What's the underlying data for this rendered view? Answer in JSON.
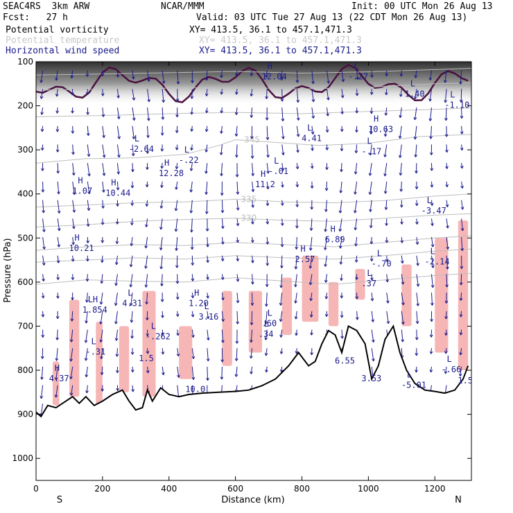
{
  "header": {
    "model": "SEAC4RS  3km ARW",
    "org": "NCAR/MMM",
    "init": "Init: 00 UTC Mon 26 Aug 13",
    "fcst": "Fcst:   27 h",
    "valid": "Valid: 03 UTC Tue 27 Aug 13 (22 CDT Mon 26 Aug 13)",
    "fields": [
      {
        "name": "Potential vorticity",
        "xy": "XY= 413.5, 36.1 to 457.1,471.3"
      },
      {
        "name": "Potential temperature",
        "xy": "XY= 413.5, 36.1 to 457.1,471.3"
      },
      {
        "name": "Horizontal wind speed",
        "xy": "XY= 413.5, 36.1 to 457.1,471.3"
      }
    ]
  },
  "colors": {
    "pv_fill": "#f7b6b6",
    "pv_dark": "#4a1040",
    "theta": "#bdbdbd",
    "wind": "#1a1a8c",
    "terrain": "#000000",
    "text_navy": "#1a1a8c",
    "text_gray": "#c8c8c8"
  },
  "chart_data": {
    "type": "cross-section",
    "xlabel": "Distance (km)",
    "ylabel": "Pressure (hPa)",
    "xlim": [
      0,
      1310
    ],
    "ylim": [
      1050,
      100
    ],
    "x_ticks": [
      0,
      200,
      400,
      600,
      800,
      1000,
      1200
    ],
    "y_ticks": [
      100,
      200,
      300,
      400,
      500,
      600,
      700,
      800,
      900,
      1000
    ],
    "end_labels": {
      "left": "S",
      "right": "N"
    },
    "terrain": [
      [
        0,
        895
      ],
      [
        15,
        905
      ],
      [
        35,
        880
      ],
      [
        60,
        885
      ],
      [
        90,
        870
      ],
      [
        110,
        860
      ],
      [
        130,
        875
      ],
      [
        150,
        860
      ],
      [
        175,
        880
      ],
      [
        200,
        870
      ],
      [
        230,
        855
      ],
      [
        260,
        845
      ],
      [
        280,
        870
      ],
      [
        300,
        890
      ],
      [
        320,
        885
      ],
      [
        335,
        845
      ],
      [
        350,
        870
      ],
      [
        375,
        840
      ],
      [
        400,
        855
      ],
      [
        430,
        860
      ],
      [
        460,
        855
      ],
      [
        500,
        852
      ],
      [
        550,
        850
      ],
      [
        600,
        848
      ],
      [
        640,
        845
      ],
      [
        680,
        835
      ],
      [
        720,
        820
      ],
      [
        760,
        790
      ],
      [
        790,
        760
      ],
      [
        820,
        790
      ],
      [
        840,
        780
      ],
      [
        860,
        740
      ],
      [
        880,
        710
      ],
      [
        900,
        720
      ],
      [
        920,
        760
      ],
      [
        940,
        700
      ],
      [
        965,
        710
      ],
      [
        990,
        740
      ],
      [
        1010,
        820
      ],
      [
        1030,
        790
      ],
      [
        1050,
        730
      ],
      [
        1075,
        700
      ],
      [
        1095,
        760
      ],
      [
        1115,
        800
      ],
      [
        1140,
        830
      ],
      [
        1170,
        845
      ],
      [
        1200,
        848
      ],
      [
        1230,
        852
      ],
      [
        1260,
        845
      ],
      [
        1285,
        820
      ],
      [
        1300,
        790
      ]
    ],
    "theta_contours": [
      {
        "label": "330",
        "label_x": 640,
        "points": [
          [
            0,
            475
          ],
          [
            150,
            470
          ],
          [
            300,
            462
          ],
          [
            450,
            458
          ],
          [
            600,
            455
          ],
          [
            750,
            460
          ],
          [
            900,
            462
          ],
          [
            1050,
            455
          ],
          [
            1200,
            448
          ],
          [
            1310,
            445
          ]
        ]
      },
      {
        "label": "335",
        "label_x": 640,
        "points": [
          [
            0,
            430
          ],
          [
            150,
            425
          ],
          [
            300,
            420
          ],
          [
            450,
            418
          ],
          [
            600,
            412
          ],
          [
            750,
            418
          ],
          [
            900,
            420
          ],
          [
            1050,
            415
          ],
          [
            1200,
            405
          ],
          [
            1310,
            400
          ]
        ]
      },
      {
        "label": "345",
        "label_x": 650,
        "points": [
          [
            0,
            330
          ],
          [
            150,
            320
          ],
          [
            300,
            318
          ],
          [
            450,
            310
          ],
          [
            550,
            290
          ],
          [
            600,
            277
          ],
          [
            700,
            282
          ],
          [
            850,
            290
          ],
          [
            1000,
            285
          ],
          [
            1150,
            270
          ],
          [
            1310,
            265
          ]
        ]
      },
      {
        "label": "",
        "label_x": 0,
        "points": [
          [
            0,
            528
          ],
          [
            150,
            520
          ],
          [
            300,
            515
          ],
          [
            450,
            517
          ],
          [
            600,
            510
          ],
          [
            750,
            515
          ],
          [
            900,
            520
          ],
          [
            1050,
            510
          ],
          [
            1200,
            500
          ],
          [
            1310,
            495
          ]
        ]
      },
      {
        "label": "",
        "label_x": 0,
        "points": [
          [
            0,
            555
          ],
          [
            150,
            550
          ],
          [
            300,
            545
          ],
          [
            450,
            548
          ],
          [
            600,
            540
          ],
          [
            750,
            545
          ],
          [
            900,
            548
          ],
          [
            1050,
            540
          ],
          [
            1200,
            530
          ],
          [
            1310,
            525
          ]
        ]
      },
      {
        "label": "",
        "label_x": 0,
        "points": [
          [
            0,
            605
          ],
          [
            150,
            595
          ],
          [
            300,
            598
          ],
          [
            450,
            600
          ],
          [
            600,
            590
          ],
          [
            750,
            598
          ],
          [
            900,
            605
          ],
          [
            1050,
            595
          ],
          [
            1200,
            585
          ],
          [
            1310,
            580
          ]
        ]
      },
      {
        "label": "",
        "label_x": 0,
        "points": [
          [
            0,
            225
          ],
          [
            200,
            222
          ],
          [
            400,
            218
          ],
          [
            600,
            215
          ],
          [
            800,
            218
          ],
          [
            1000,
            213
          ],
          [
            1200,
            208
          ],
          [
            1310,
            205
          ]
        ]
      },
      {
        "label": "",
        "label_x": 0,
        "points": [
          [
            0,
            165
          ],
          [
            200,
            162
          ],
          [
            400,
            160
          ],
          [
            600,
            158
          ],
          [
            800,
            162
          ],
          [
            1000,
            158
          ],
          [
            1200,
            150
          ],
          [
            1310,
            148
          ]
        ]
      },
      {
        "label": "",
        "label_x": 0,
        "points": [
          [
            0,
            130
          ],
          [
            200,
            128
          ],
          [
            400,
            125
          ],
          [
            600,
            122
          ],
          [
            800,
            126
          ],
          [
            1000,
            123
          ],
          [
            1200,
            118
          ],
          [
            1310,
            115
          ]
        ]
      }
    ],
    "wind_speed_labels": [
      {
        "x": 60,
        "p": 820,
        "hl": "H",
        "v": "4.37"
      },
      {
        "x": 170,
        "p": 760,
        "hl": "L",
        "v": "-.31"
      },
      {
        "x": 130,
        "p": 395,
        "hl": "H",
        "v": "1.07"
      },
      {
        "x": 230,
        "p": 400,
        "hl": "H",
        "v": "10.44"
      },
      {
        "x": 120,
        "p": 525,
        "hl": "H",
        "v": "10.21"
      },
      {
        "x": 160,
        "p": 665,
        "hl": "LH",
        "v": "1.854"
      },
      {
        "x": 280,
        "p": 650,
        "hl": "L",
        "v": "4.31"
      },
      {
        "x": 300,
        "p": 300,
        "hl": "L",
        "v": "-2.64"
      },
      {
        "x": 390,
        "p": 355,
        "hl": "H",
        "v": "12.28"
      },
      {
        "x": 450,
        "p": 325,
        "hl": "L",
        "v": "-.22"
      },
      {
        "x": 480,
        "p": 650,
        "hl": "H",
        "v": "1.20"
      },
      {
        "x": 510,
        "p": 680,
        "hl": "L",
        "v": "3.16"
      },
      {
        "x": 680,
        "p": 380,
        "hl": "H",
        "v": "11.2"
      },
      {
        "x": 720,
        "p": 350,
        "hl": "L",
        "v": "-.01"
      },
      {
        "x": 700,
        "p": 135,
        "hl": "H",
        "v": "12.04"
      },
      {
        "x": 820,
        "p": 275,
        "hl": "L",
        "v": "4.41"
      },
      {
        "x": 1020,
        "p": 255,
        "hl": "H",
        "v": "10.63"
      },
      {
        "x": 1000,
        "p": 305,
        "hl": "L",
        "v": "-.17"
      },
      {
        "x": 960,
        "p": 135,
        "hl": "L",
        "v": "-.27"
      },
      {
        "x": 1130,
        "p": 175,
        "hl": "L",
        "v": "1.40"
      },
      {
        "x": 890,
        "p": 505,
        "hl": "H",
        "v": "6.89"
      },
      {
        "x": 800,
        "p": 550,
        "hl": "H",
        "v": "2.57"
      },
      {
        "x": 1030,
        "p": 560,
        "hl": "L",
        "v": "-.70"
      },
      {
        "x": 1190,
        "p": 555,
        "hl": "L",
        "v": "-2.14"
      },
      {
        "x": 1000,
        "p": 605,
        "hl": "L",
        "v": ".37"
      },
      {
        "x": 700,
        "p": 695,
        "hl": "L",
        "v": ".60"
      },
      {
        "x": 690,
        "p": 720,
        "hl": "L",
        "v": ".34"
      },
      {
        "x": 350,
        "p": 725,
        "hl": "L",
        "v": "-.262"
      },
      {
        "x": 330,
        "p": 775,
        "hl": "",
        "v": "1.5"
      },
      {
        "x": 250,
        "p": 835,
        "hl": "",
        "v": ""
      },
      {
        "x": 470,
        "p": 845,
        "hl": "",
        "v": "10.0"
      },
      {
        "x": 920,
        "p": 780,
        "hl": "",
        "v": "6.55"
      },
      {
        "x": 1000,
        "p": 820,
        "hl": "",
        "v": "3.53"
      },
      {
        "x": 1120,
        "p": 835,
        "hl": "L",
        "v": "-5.01"
      },
      {
        "x": 1240,
        "p": 800,
        "hl": "L",
        "v": "-.66"
      },
      {
        "x": 1290,
        "p": 825,
        "hl": "",
        "v": "1.5"
      },
      {
        "x": 1180,
        "p": 440,
        "hl": "L",
        "v": "-3.47"
      },
      {
        "x": 1250,
        "p": 200,
        "hl": "L",
        "v": "-1.10"
      }
    ],
    "pv_regions": [
      [
        50,
        780,
        70,
        880
      ],
      [
        100,
        640,
        130,
        860
      ],
      [
        180,
        690,
        200,
        880
      ],
      [
        250,
        700,
        280,
        850
      ],
      [
        320,
        620,
        360,
        860
      ],
      [
        430,
        700,
        470,
        820
      ],
      [
        560,
        620,
        590,
        790
      ],
      [
        640,
        620,
        680,
        760
      ],
      [
        740,
        590,
        770,
        720
      ],
      [
        800,
        540,
        850,
        690
      ],
      [
        880,
        600,
        910,
        700
      ],
      [
        960,
        570,
        990,
        640
      ],
      [
        1100,
        560,
        1130,
        700
      ],
      [
        1200,
        500,
        1240,
        760
      ],
      [
        1270,
        460,
        1300,
        800
      ]
    ]
  }
}
